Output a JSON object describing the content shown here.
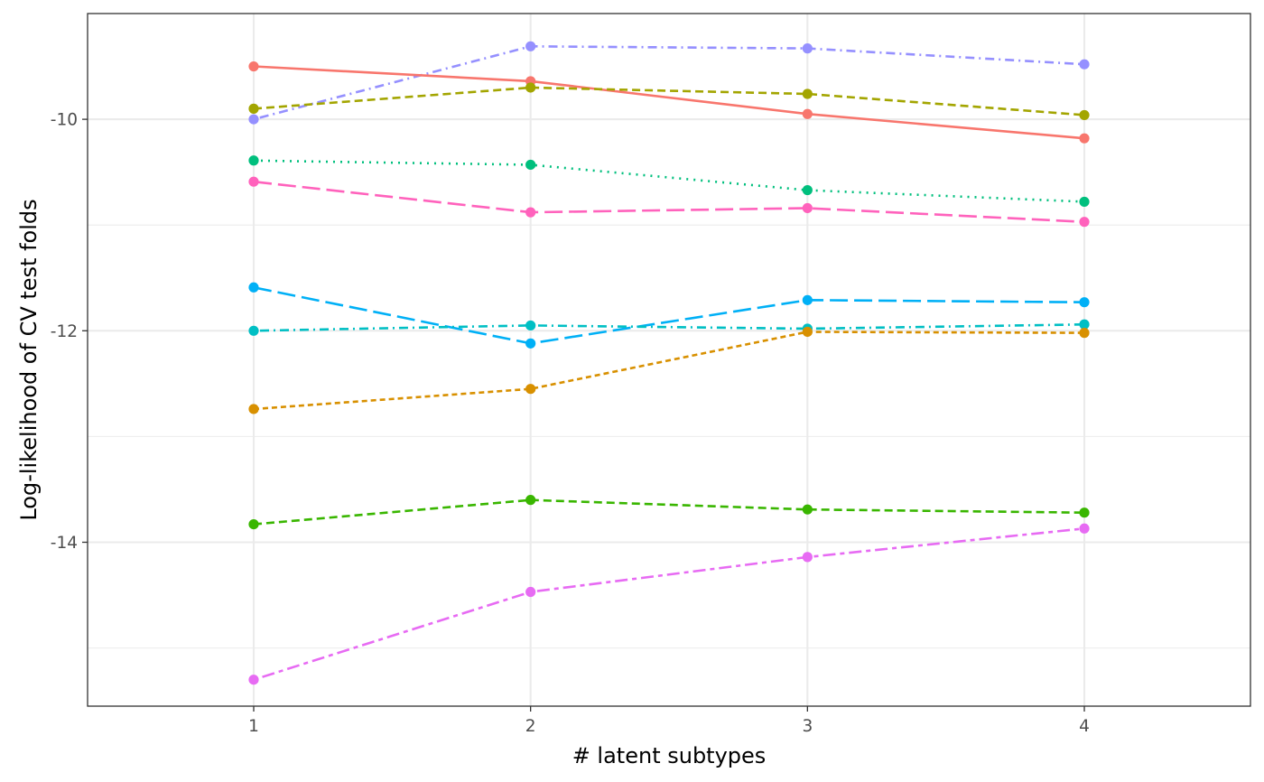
{
  "chart_data": {
    "type": "line",
    "title": "",
    "xlabel": "# latent subtypes",
    "ylabel": "Log-likelihood of CV test folds",
    "x": [
      1,
      2,
      3,
      4
    ],
    "xlim": [
      0.4,
      4.6
    ],
    "ylim": [
      -15.55,
      -9.0
    ],
    "x_ticks": [
      1,
      2,
      3,
      4
    ],
    "y_ticks": [
      -10,
      -12,
      -14
    ],
    "y_minor_ticks": [
      -9,
      -11,
      -13,
      -15
    ],
    "grid": true,
    "legend": "none",
    "series": [
      {
        "color": "#9590FF",
        "dash": "dotdash",
        "values": [
          -10.0,
          -9.31,
          -9.33,
          -9.48
        ]
      },
      {
        "color": "#F8766D",
        "dash": "solid",
        "values": [
          -9.5,
          -9.64,
          -9.95,
          -10.18
        ]
      },
      {
        "color": "#A3A500",
        "dash": "dashed",
        "values": [
          -9.9,
          -9.7,
          -9.76,
          -9.96
        ]
      },
      {
        "color": "#00BF7D",
        "dash": "dotted",
        "values": [
          -10.39,
          -10.43,
          -10.67,
          -10.78
        ]
      },
      {
        "color": "#FF62BC",
        "dash": "longdash",
        "values": [
          -10.59,
          -10.88,
          -10.84,
          -10.97
        ]
      },
      {
        "color": "#00B0F6",
        "dash": "longdash",
        "values": [
          -11.59,
          -12.12,
          -11.71,
          -11.73
        ]
      },
      {
        "color": "#00BFC4",
        "dash": "dotdash",
        "values": [
          -12.0,
          -11.95,
          -11.98,
          -11.94
        ]
      },
      {
        "color": "#D89000",
        "dash": "dashed-short",
        "values": [
          -12.74,
          -12.55,
          -12.01,
          -12.02
        ]
      },
      {
        "color": "#39B600",
        "dash": "dashed",
        "values": [
          -13.83,
          -13.6,
          -13.69,
          -13.72
        ]
      },
      {
        "color": "#E76BF3",
        "dash": "twodash",
        "values": [
          -15.3,
          -14.47,
          -14.14,
          -13.87
        ]
      }
    ]
  }
}
